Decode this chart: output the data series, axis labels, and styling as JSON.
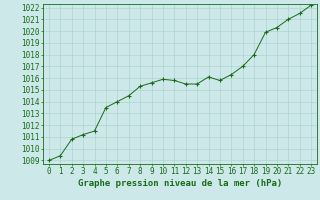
{
  "x": [
    0,
    1,
    2,
    3,
    4,
    5,
    6,
    7,
    8,
    9,
    10,
    11,
    12,
    13,
    14,
    15,
    16,
    17,
    18,
    19,
    20,
    21,
    22,
    23
  ],
  "y": [
    1009.0,
    1009.4,
    1010.8,
    1011.2,
    1011.5,
    1013.5,
    1014.0,
    1014.5,
    1015.3,
    1015.6,
    1015.9,
    1015.8,
    1015.5,
    1015.5,
    1016.1,
    1015.8,
    1016.3,
    1017.0,
    1018.0,
    1019.9,
    1020.3,
    1021.0,
    1021.5,
    1022.2
  ],
  "line_color": "#1a6b1a",
  "marker": "+",
  "marker_size": 3,
  "bg_color": "#cce8e8",
  "grid_color": "#aacccc",
  "xlabel": "Graphe pression niveau de la mer (hPa)",
  "ylabel": "",
  "ylim_min": 1009,
  "ylim_max": 1022,
  "ytick_step": 1,
  "xtick_labels": [
    "0",
    "1",
    "2",
    "3",
    "4",
    "5",
    "6",
    "7",
    "8",
    "9",
    "10",
    "11",
    "12",
    "13",
    "14",
    "15",
    "16",
    "17",
    "18",
    "19",
    "20",
    "21",
    "22",
    "23"
  ],
  "xlabel_fontsize": 6.5,
  "tick_fontsize": 5.5,
  "tick_color": "#1a6b1a",
  "spine_color": "#1a6b1a"
}
